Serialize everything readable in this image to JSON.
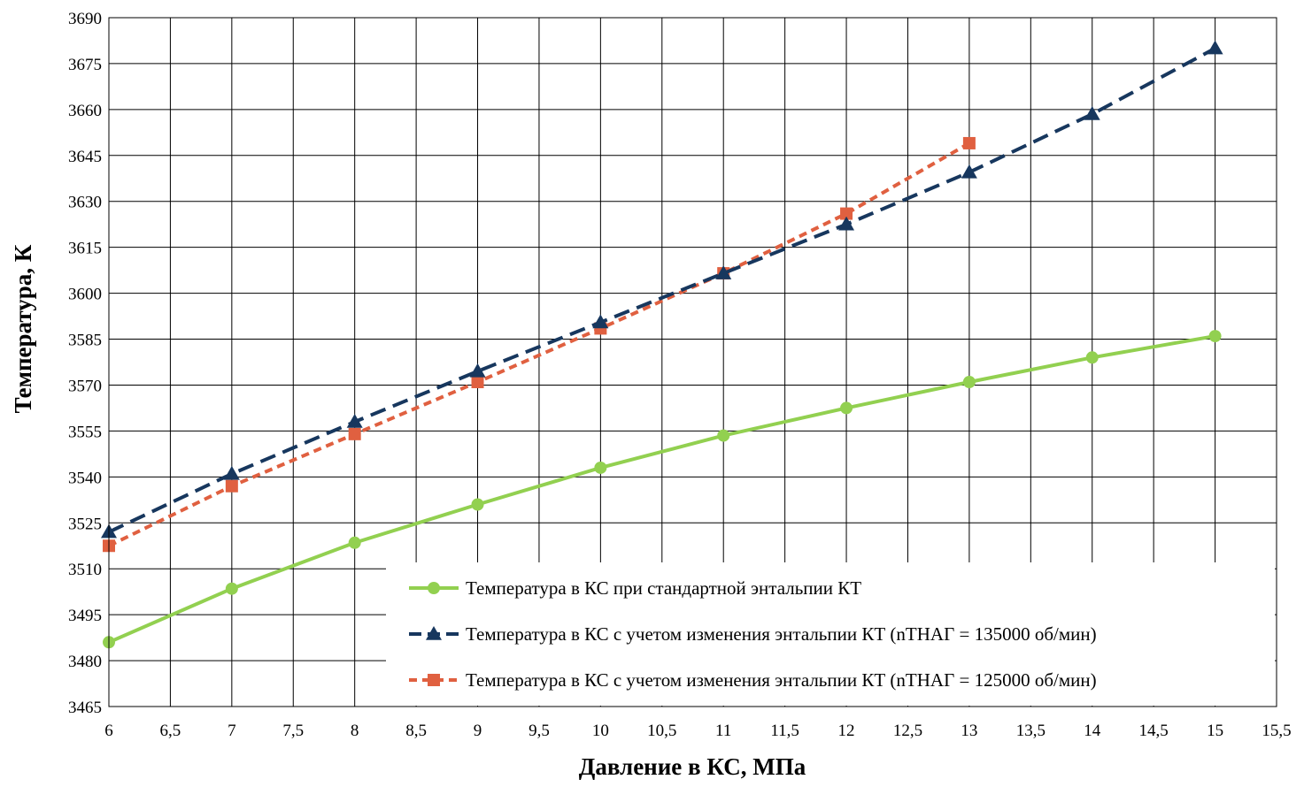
{
  "chart_data": {
    "type": "line",
    "xlabel": "Давление в КС, МПа",
    "ylabel": "Температура, К",
    "xlim": [
      6,
      15.5
    ],
    "ylim": [
      3465,
      3690
    ],
    "x_ticks": [
      "6",
      "6,5",
      "7",
      "7,5",
      "8",
      "8,5",
      "9",
      "9,5",
      "10",
      "10,5",
      "11",
      "11,5",
      "12",
      "12,5",
      "13",
      "13,5",
      "14",
      "14,5",
      "15",
      "15,5"
    ],
    "y_ticks": [
      "3465",
      "3480",
      "3495",
      "3510",
      "3525",
      "3540",
      "3555",
      "3570",
      "3585",
      "3600",
      "3615",
      "3630",
      "3645",
      "3660",
      "3675",
      "3690"
    ],
    "grid": true,
    "legend_position": "bottom-right (inside plot)",
    "series": [
      {
        "name": "Температура в КС при стандартной энтальпии КТ",
        "color": "#92d050",
        "marker": "circle",
        "line_style": "solid",
        "x": [
          6,
          7,
          8,
          9,
          10,
          11,
          12,
          13,
          14,
          15
        ],
        "y": [
          3486,
          3503.5,
          3518.5,
          3531,
          3543,
          3553.5,
          3562.5,
          3571,
          3579,
          3586
        ]
      },
      {
        "name": "Температура в КС с учетом изменения энтальпии КТ (nТНАГ = 135000 об/мин)",
        "color": "#17375e",
        "marker": "triangle",
        "line_style": "dashed",
        "x": [
          6,
          7,
          8,
          9,
          10,
          11,
          12,
          13,
          14,
          15
        ],
        "y": [
          3522,
          3541,
          3558,
          3574.5,
          3590.5,
          3606.5,
          3622.5,
          3639.5,
          3658.5,
          3680
        ]
      },
      {
        "name": "Температура в КС с учетом изменения энтальпии КТ (nТНАГ = 125000 об/мин)",
        "color": "#e06040",
        "marker": "square",
        "line_style": "dashed",
        "x": [
          6,
          7,
          8,
          9,
          10,
          11,
          12,
          13
        ],
        "y": [
          3517.5,
          3537,
          3554,
          3571,
          3588.5,
          3606.5,
          3626,
          3649
        ]
      }
    ]
  }
}
